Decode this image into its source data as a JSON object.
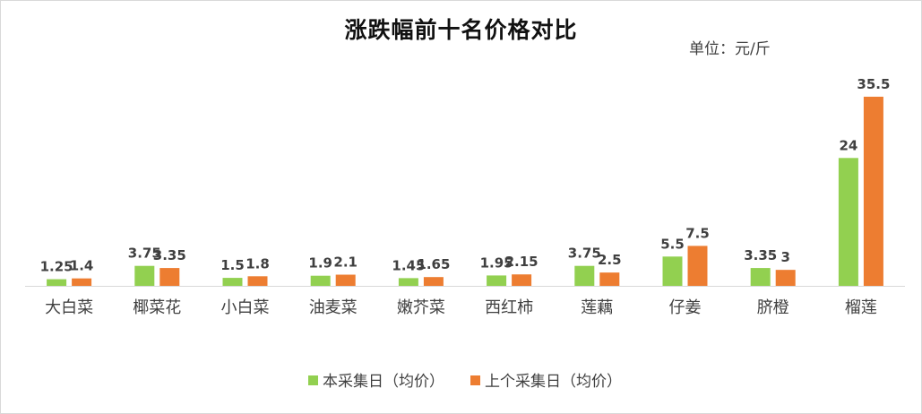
{
  "chart_data": {
    "type": "bar",
    "title": "涨跌幅前十名价格对比",
    "unit_label": "单位：元/斤",
    "categories": [
      "大白菜",
      "椰菜花",
      "小白菜",
      "油麦菜",
      "嫩芥菜",
      "西红柿",
      "莲藕",
      "仔姜",
      "脐橙",
      "榴莲"
    ],
    "series": [
      {
        "name": "本采集日（均价）",
        "color": "#92d050",
        "values": [
          1.25,
          3.75,
          1.5,
          1.9,
          1.45,
          1.95,
          3.75,
          5.5,
          3.35,
          24
        ],
        "labels": [
          "1.25",
          "3.75",
          "1.5",
          "1.9",
          "1.45",
          "1.95",
          "3.75",
          "5.5",
          "3.35",
          "24"
        ]
      },
      {
        "name": "上个采集日（均价）",
        "color": "#ed7d31",
        "values": [
          1.4,
          3.35,
          1.8,
          2.1,
          1.65,
          2.15,
          2.5,
          7.5,
          3,
          35.5
        ],
        "labels": [
          "1.4",
          "3.35",
          "1.8",
          "2.1",
          "1.65",
          "2.15",
          "2.5",
          "7.5",
          "3",
          "35.5"
        ]
      }
    ],
    "ylim": [
      0,
      37
    ],
    "grid": false,
    "legend_position": "bottom"
  }
}
